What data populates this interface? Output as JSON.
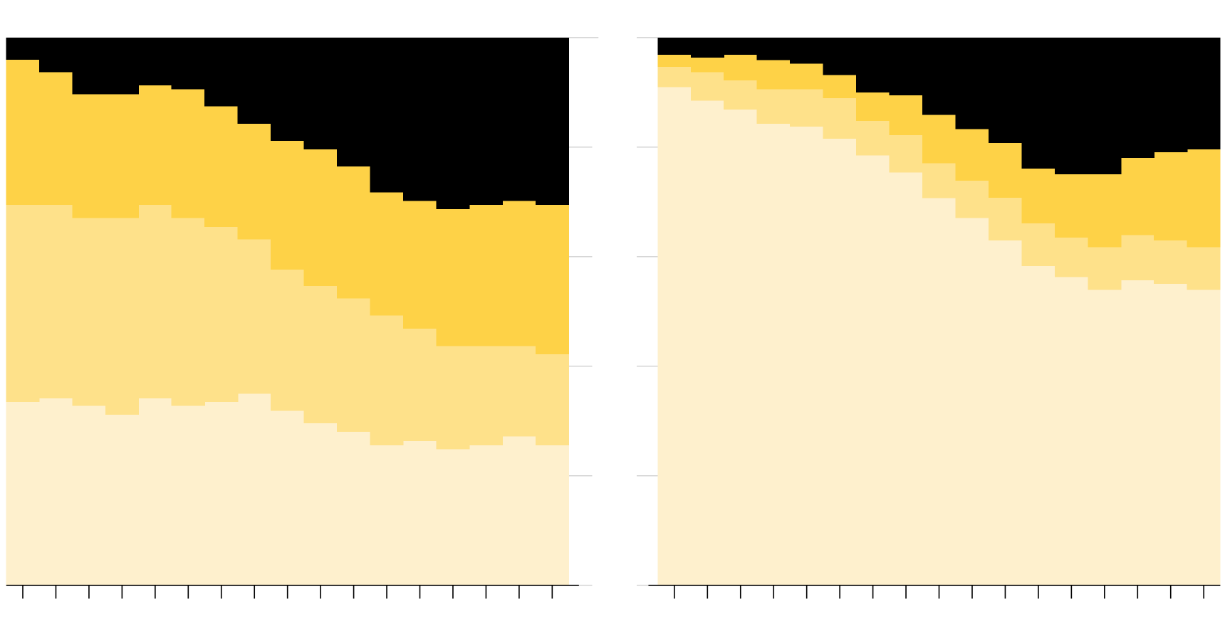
{
  "chart_data": [
    {
      "type": "stacked_step_area",
      "categories": [
        null,
        null,
        null,
        null,
        null,
        null,
        null,
        null,
        null,
        null,
        null,
        null,
        null,
        null,
        null,
        null,
        null
      ],
      "ylim": [
        0,
        100
      ],
      "yticks": [
        0,
        20,
        40,
        60,
        80,
        100
      ],
      "grid": true,
      "series": [
        {
          "color": "#fef0cd",
          "values": [
            33.5,
            34.2,
            32.8,
            31.2,
            34.2,
            32.8,
            33.5,
            35.0,
            31.9,
            29.6,
            28.1,
            25.6,
            26.4,
            24.9,
            25.6,
            27.2,
            25.6
          ]
        },
        {
          "color": "#fee18a",
          "values": [
            36.0,
            35.3,
            34.3,
            35.9,
            35.3,
            34.3,
            32.0,
            28.2,
            25.8,
            25.1,
            24.3,
            23.7,
            20.5,
            18.8,
            18.1,
            16.5,
            16.6
          ]
        },
        {
          "color": "#fed247",
          "values": [
            26.5,
            24.2,
            22.6,
            22.6,
            21.8,
            23.5,
            22.0,
            21.1,
            23.5,
            24.9,
            24.1,
            22.5,
            23.3,
            25.0,
            25.8,
            26.5,
            27.3
          ]
        },
        {
          "color": "#000000",
          "values": [
            4.0,
            6.3,
            10.3,
            10.3,
            8.7,
            9.4,
            12.5,
            15.7,
            18.8,
            20.4,
            23.5,
            28.2,
            29.8,
            31.3,
            30.5,
            29.8,
            30.5
          ]
        }
      ]
    },
    {
      "type": "stacked_step_area",
      "categories": [
        null,
        null,
        null,
        null,
        null,
        null,
        null,
        null,
        null,
        null,
        null,
        null,
        null,
        null,
        null,
        null,
        null
      ],
      "ylim": [
        0,
        100
      ],
      "yticks": [
        0,
        20,
        40,
        60,
        80,
        100
      ],
      "grid": true,
      "series": [
        {
          "color": "#fef0cd",
          "values": [
            91.0,
            88.5,
            86.9,
            84.3,
            83.8,
            81.6,
            78.5,
            75.4,
            70.7,
            67.1,
            63.0,
            58.3,
            56.3,
            54.0,
            55.7,
            55.1,
            54.0
          ]
        },
        {
          "color": "#fee18a",
          "values": [
            3.7,
            5.2,
            5.3,
            6.3,
            6.8,
            7.4,
            6.3,
            6.8,
            6.4,
            6.8,
            7.8,
            7.8,
            7.2,
            7.8,
            8.3,
            7.9,
            7.8
          ]
        },
        {
          "color": "#fed247",
          "values": [
            2.2,
            2.7,
            4.7,
            5.3,
            4.7,
            4.2,
            5.2,
            7.3,
            8.8,
            9.4,
            10.0,
            10.0,
            11.6,
            13.3,
            14.1,
            16.1,
            17.8
          ]
        },
        {
          "color": "#000000",
          "values": [
            3.1,
            3.6,
            3.1,
            4.1,
            4.7,
            6.8,
            10.0,
            10.5,
            14.1,
            16.7,
            19.2,
            23.9,
            24.9,
            24.9,
            21.9,
            20.9,
            20.4
          ]
        }
      ]
    }
  ]
}
